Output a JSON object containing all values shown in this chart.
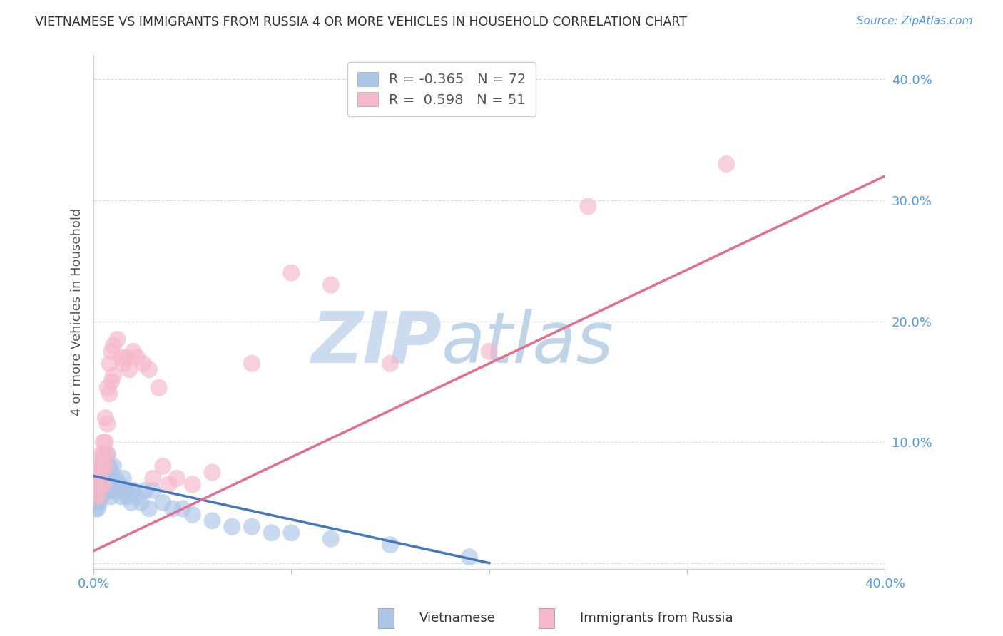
{
  "title": "VIETNAMESE VS IMMIGRANTS FROM RUSSIA 4 OR MORE VEHICLES IN HOUSEHOLD CORRELATION CHART",
  "source": "Source: ZipAtlas.com",
  "ylabel": "4 or more Vehicles in Household",
  "legend_label1": "Vietnamese",
  "legend_label2": "Immigrants from Russia",
  "R1": -0.365,
  "N1": 72,
  "R2": 0.598,
  "N2": 51,
  "color1": "#adc6e8",
  "color2": "#f5b8cb",
  "trend1_color": "#4477bb",
  "trend2_color": "#e07090",
  "xlim": [
    0.0,
    0.4
  ],
  "ylim": [
    -0.005,
    0.42
  ],
  "xtick_left": 0.0,
  "xtick_right": 0.4,
  "yticks_right": [
    0.1,
    0.2,
    0.3,
    0.4
  ],
  "watermark_zip": "ZIP",
  "watermark_atlas": "atlas",
  "watermark_color_zip": "#d0dff0",
  "watermark_color_atlas": "#c0d8f0",
  "title_color": "#333333",
  "axis_label_color": "#555555",
  "tick_color": "#5599dd",
  "background_color": "#ffffff",
  "grid_color": "#dddddd",
  "scatter1_x": [
    0.001,
    0.001,
    0.001,
    0.001,
    0.001,
    0.002,
    0.002,
    0.002,
    0.002,
    0.002,
    0.002,
    0.003,
    0.003,
    0.003,
    0.003,
    0.003,
    0.003,
    0.004,
    0.004,
    0.004,
    0.004,
    0.004,
    0.005,
    0.005,
    0.005,
    0.005,
    0.005,
    0.005,
    0.006,
    0.006,
    0.006,
    0.006,
    0.006,
    0.007,
    0.007,
    0.007,
    0.007,
    0.008,
    0.008,
    0.008,
    0.009,
    0.009,
    0.009,
    0.01,
    0.01,
    0.011,
    0.012,
    0.013,
    0.014,
    0.015,
    0.016,
    0.017,
    0.018,
    0.019,
    0.02,
    0.022,
    0.024,
    0.026,
    0.028,
    0.03,
    0.035,
    0.04,
    0.045,
    0.05,
    0.06,
    0.07,
    0.08,
    0.09,
    0.1,
    0.12,
    0.15,
    0.19
  ],
  "scatter1_y": [
    0.065,
    0.06,
    0.055,
    0.05,
    0.045,
    0.07,
    0.065,
    0.06,
    0.055,
    0.05,
    0.045,
    0.075,
    0.07,
    0.065,
    0.06,
    0.055,
    0.05,
    0.08,
    0.075,
    0.065,
    0.06,
    0.055,
    0.085,
    0.08,
    0.075,
    0.07,
    0.065,
    0.06,
    0.085,
    0.08,
    0.075,
    0.065,
    0.06,
    0.09,
    0.08,
    0.07,
    0.06,
    0.08,
    0.07,
    0.06,
    0.075,
    0.065,
    0.055,
    0.08,
    0.06,
    0.07,
    0.06,
    0.065,
    0.055,
    0.07,
    0.06,
    0.055,
    0.06,
    0.05,
    0.06,
    0.055,
    0.05,
    0.06,
    0.045,
    0.06,
    0.05,
    0.045,
    0.045,
    0.04,
    0.035,
    0.03,
    0.03,
    0.025,
    0.025,
    0.02,
    0.015,
    0.005
  ],
  "scatter2_x": [
    0.001,
    0.001,
    0.001,
    0.002,
    0.002,
    0.002,
    0.003,
    0.003,
    0.003,
    0.004,
    0.004,
    0.004,
    0.005,
    0.005,
    0.005,
    0.005,
    0.006,
    0.006,
    0.006,
    0.007,
    0.007,
    0.007,
    0.008,
    0.008,
    0.009,
    0.009,
    0.01,
    0.01,
    0.012,
    0.014,
    0.015,
    0.017,
    0.018,
    0.02,
    0.022,
    0.025,
    0.028,
    0.03,
    0.033,
    0.035,
    0.038,
    0.042,
    0.05,
    0.06,
    0.08,
    0.1,
    0.12,
    0.15,
    0.2,
    0.25,
    0.32
  ],
  "scatter2_y": [
    0.065,
    0.06,
    0.055,
    0.075,
    0.065,
    0.055,
    0.085,
    0.075,
    0.065,
    0.09,
    0.08,
    0.065,
    0.1,
    0.09,
    0.08,
    0.065,
    0.12,
    0.1,
    0.08,
    0.145,
    0.115,
    0.09,
    0.165,
    0.14,
    0.175,
    0.15,
    0.18,
    0.155,
    0.185,
    0.17,
    0.165,
    0.17,
    0.16,
    0.175,
    0.17,
    0.165,
    0.16,
    0.07,
    0.145,
    0.08,
    0.065,
    0.07,
    0.065,
    0.075,
    0.165,
    0.24,
    0.23,
    0.165,
    0.175,
    0.295,
    0.33
  ],
  "trend1_x_start": 0.0,
  "trend1_x_end": 0.2,
  "trend1_y_start": 0.072,
  "trend1_y_end": 0.0,
  "trend2_x_start": 0.0,
  "trend2_x_end": 0.4,
  "trend2_y_start": 0.01,
  "trend2_y_end": 0.32
}
